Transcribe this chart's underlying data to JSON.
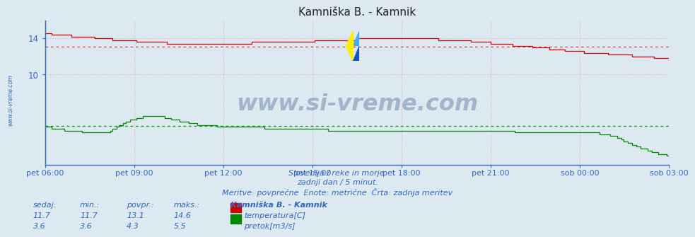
{
  "title": "Kamniška B. - Kamnik",
  "background_color": "#dce9f0",
  "plot_bg_color": "#dce9f0",
  "temp_color": "#cc0000",
  "flow_color": "#008800",
  "avg_temp_color": "#dd4444",
  "avg_flow_color": "#009900",
  "axis_color": "#3366bb",
  "text_color": "#3366bb",
  "grid_color": "#ee9999",
  "grid_color_v": "#ee9999",
  "xlabel_times": [
    "pet 06:00",
    "pet 09:00",
    "pet 12:00",
    "pet 15:00",
    "pet 18:00",
    "pet 21:00",
    "sob 00:00",
    "sob 03:00"
  ],
  "yticks": [
    10,
    14
  ],
  "temp_avg": 13.1,
  "flow_avg": 4.3,
  "temp_min": 11.7,
  "temp_max": 14.6,
  "flow_min": 3.6,
  "flow_max": 5.5,
  "temp_current": 11.7,
  "flow_current": 3.6,
  "subtitle1": "Slovenija / reke in morje.",
  "subtitle2": "zadnji dan / 5 minut.",
  "subtitle3": "Meritve: povprečne  Enote: metrične  Črta: zadnja meritev",
  "legend_title": "Kamniška B. - Kamnik",
  "legend_temp": "temperatura[C]",
  "legend_flow": "pretok[m3/s]",
  "col_sedaj": "sedaj:",
  "col_min": "min.:",
  "col_povpr": "povpr.:",
  "col_maks": "maks.:",
  "watermark": "www.si-vreme.com",
  "ymin": 0,
  "ymax": 16.0,
  "n_points": 288
}
